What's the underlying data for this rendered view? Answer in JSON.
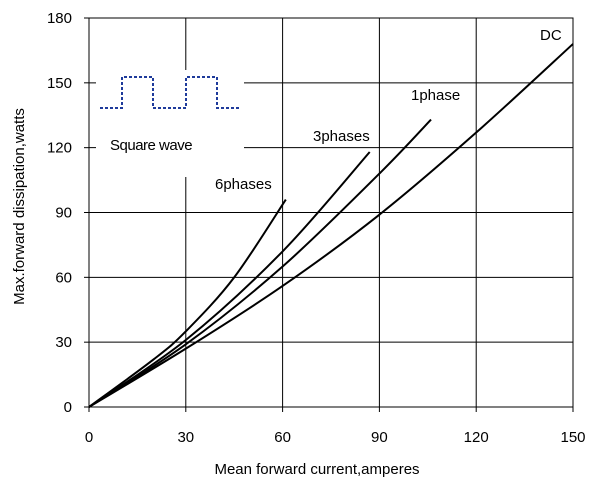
{
  "chart_data": {
    "type": "line",
    "xlabel": "Mean forward current,amperes",
    "ylabel": "Max.forward dissipation,watts",
    "xlim": [
      0,
      150
    ],
    "ylim": [
      0,
      180
    ],
    "x_ticks": [
      "0",
      "30",
      "60",
      "90",
      "120",
      "150"
    ],
    "y_ticks": [
      "0",
      "30",
      "60",
      "90",
      "120",
      "150",
      "180"
    ],
    "grid": true,
    "inset_label": "Square wave",
    "series": [
      {
        "name": "DC",
        "x": [
          0,
          30,
          60,
          90,
          120,
          150
        ],
        "y": [
          0,
          27,
          56,
          89,
          127,
          168
        ]
      },
      {
        "name": "1phase",
        "x": [
          0,
          30,
          60,
          90,
          106
        ],
        "y": [
          0,
          29,
          65,
          108,
          133
        ]
      },
      {
        "name": "3phases",
        "x": [
          0,
          30,
          60,
          87
        ],
        "y": [
          0,
          31,
          72,
          118
        ]
      },
      {
        "name": "6phases",
        "x": [
          0,
          20,
          30,
          45,
          61
        ],
        "y": [
          0,
          22,
          35,
          60,
          96
        ]
      }
    ]
  }
}
